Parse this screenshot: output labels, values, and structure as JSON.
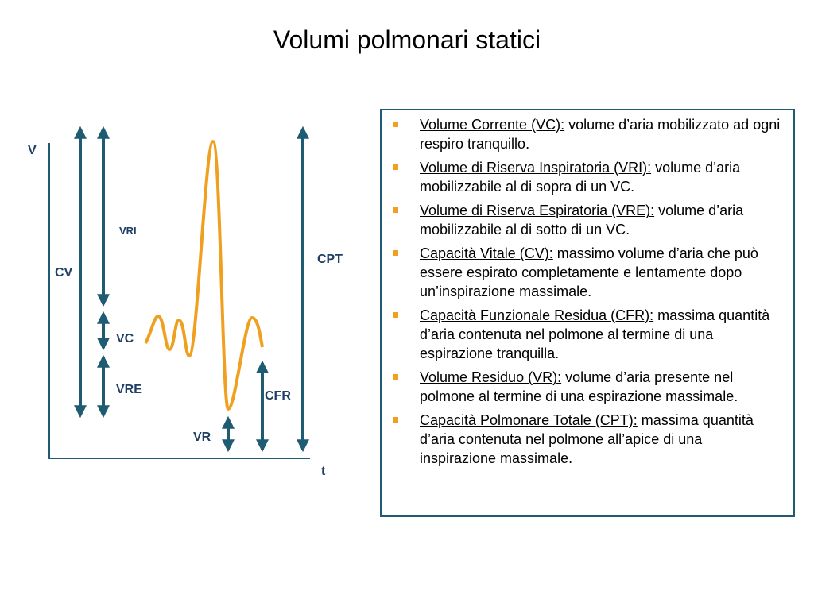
{
  "title": "Volumi polmonari statici",
  "diagram": {
    "y_axis": "V",
    "x_axis": "t",
    "labels": {
      "vri": "VRI",
      "cv": "CV",
      "vc": "VC",
      "vre": "VRE",
      "vr": "VR",
      "cfr": "CFR",
      "cpt": "CPT"
    }
  },
  "definitions": [
    {
      "term": "Volume Corrente (VC):",
      "text": " volume d’aria mobilizzato ad ogni respiro tranquillo."
    },
    {
      "term": "Volume di Riserva Inspiratoria (VRI):",
      "text": " volume d’aria mobilizzabile al di sopra di un VC."
    },
    {
      "term": "Volume di Riserva Espiratoria (VRE):",
      "text": " volume d’aria mobilizzabile al di sotto di un VC."
    },
    {
      "term": "Capacità Vitale (CV):",
      "text": " massimo volume d’aria che può essere espirato completamente e lentamente dopo un’inspirazione massimale."
    },
    {
      "term": "Capacità Funzionale Residua (CFR):",
      "text": " massima quantità d’aria contenuta nel polmone al termine di una espirazione tranquilla."
    },
    {
      "term": "Volume Residuo (VR):",
      "text": " volume d’aria presente nel polmone al termine di una espirazione massimale."
    },
    {
      "term": "Capacità Polmonare Totale (CPT):",
      "text": " massima quantità d’aria contenuta nel polmone all’apice di una inspirazione massimale."
    }
  ]
}
